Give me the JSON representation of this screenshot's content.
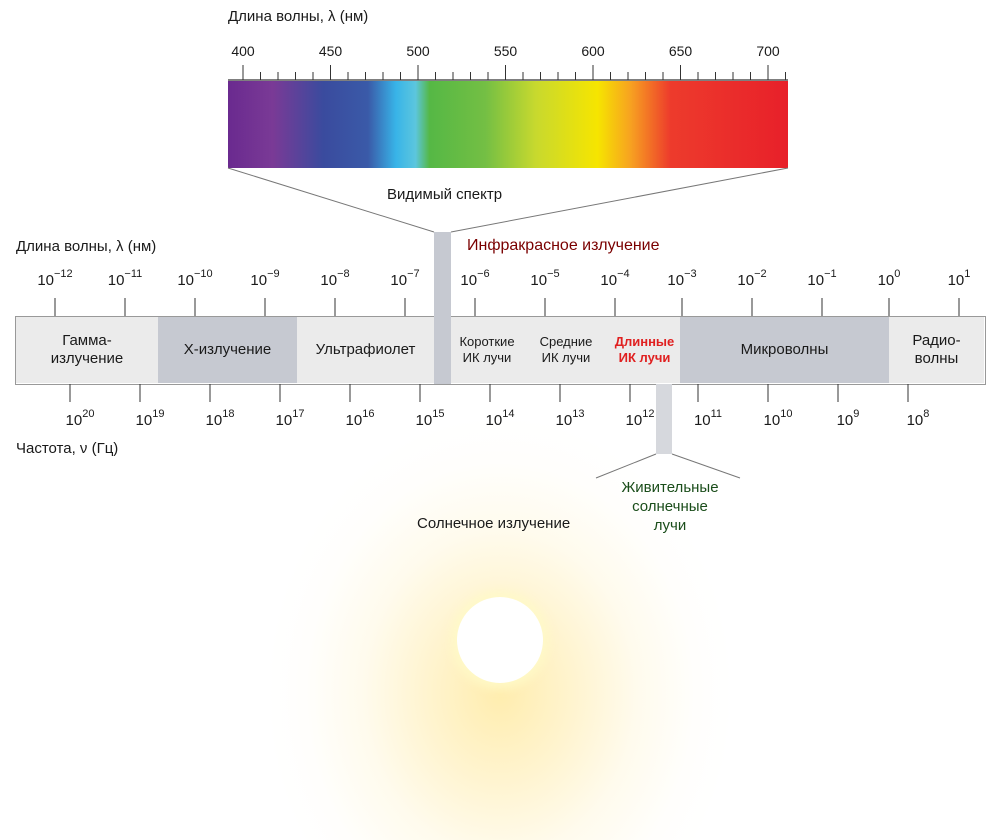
{
  "visible_spectrum": {
    "axis_title": "Длина волны, λ (нм)",
    "ticks": [
      "400",
      "450",
      "500",
      "550",
      "600",
      "650",
      "700"
    ],
    "caption": "Видимый спектр"
  },
  "spectrum_scale": {
    "wavelength_title": "Длина волны, λ (нм)",
    "wavelength_ticks": [
      {
        "base": "10",
        "exp": "−12"
      },
      {
        "base": "10",
        "exp": "−11"
      },
      {
        "base": "10",
        "exp": "−10"
      },
      {
        "base": "10",
        "exp": "−9"
      },
      {
        "base": "10",
        "exp": "−8"
      },
      {
        "base": "10",
        "exp": "−7"
      },
      {
        "base": "10",
        "exp": "−6"
      },
      {
        "base": "10",
        "exp": "−5"
      },
      {
        "base": "10",
        "exp": "−4"
      },
      {
        "base": "10",
        "exp": "−3"
      },
      {
        "base": "10",
        "exp": "−2"
      },
      {
        "base": "10",
        "exp": "−1"
      },
      {
        "base": "10",
        "exp": "0"
      },
      {
        "base": "10",
        "exp": "1"
      }
    ],
    "frequency_title": "Частота, ν (Гц)",
    "frequency_ticks": [
      {
        "base": "10",
        "exp": "20"
      },
      {
        "base": "10",
        "exp": "19"
      },
      {
        "base": "10",
        "exp": "18"
      },
      {
        "base": "10",
        "exp": "17"
      },
      {
        "base": "10",
        "exp": "16"
      },
      {
        "base": "10",
        "exp": "15"
      },
      {
        "base": "10",
        "exp": "14"
      },
      {
        "base": "10",
        "exp": "13"
      },
      {
        "base": "10",
        "exp": "12"
      },
      {
        "base": "10",
        "exp": "11"
      },
      {
        "base": "10",
        "exp": "10"
      },
      {
        "base": "10",
        "exp": "9"
      },
      {
        "base": "10",
        "exp": "8"
      }
    ]
  },
  "bands": {
    "gamma": "Гамма-\nизлучение",
    "xray": "X-излучение",
    "uv": "Ультрафиолет",
    "short_ir": "Короткие\nИК лучи",
    "mid_ir": "Средние\nИК лучи",
    "long_ir": "Длинные\nИК лучи",
    "microwave": "Микроволны",
    "radio": "Радио-\nволны"
  },
  "annotations": {
    "infrared": "Инфракрасное излучение",
    "life_rays": "Живительные\nсолнечные\nлучи",
    "solar": "Солнечное излучение"
  },
  "colors": {
    "infrared_label": "#7a0000",
    "long_ir_label": "#e02020",
    "life_rays_label": "#1a4d1a",
    "band_light": "#ebebeb",
    "band_dark": "#c6c9d1"
  }
}
